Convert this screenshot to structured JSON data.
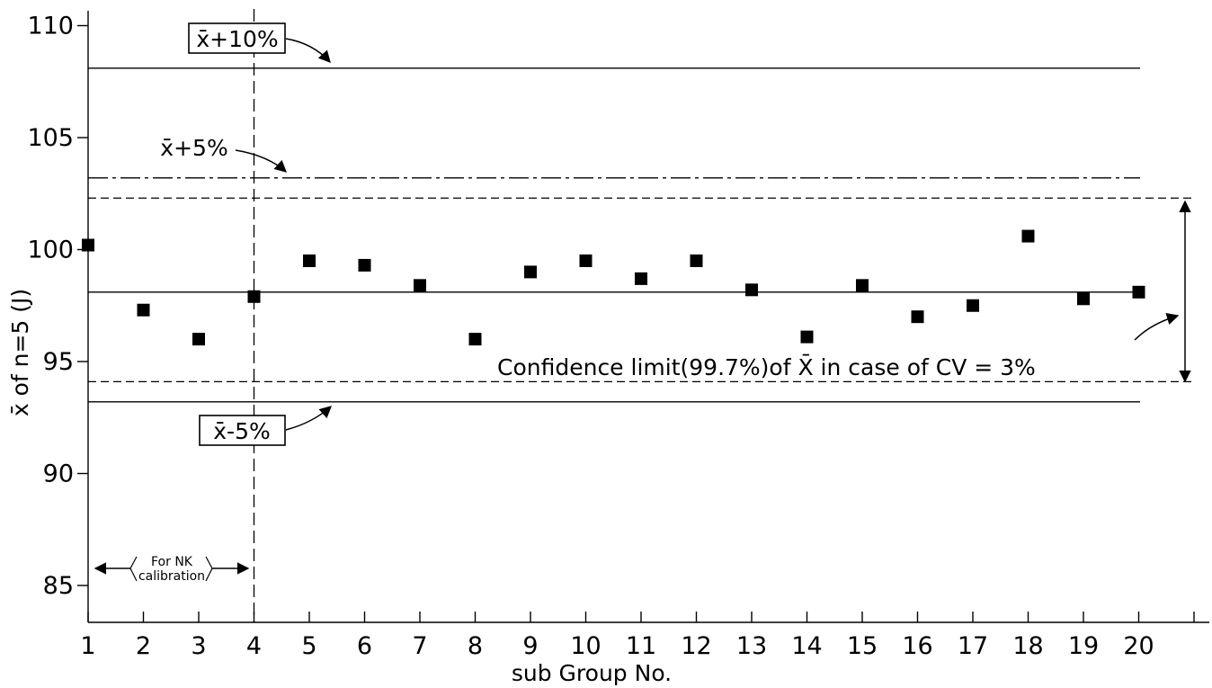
{
  "chart_data": {
    "type": "scatter",
    "title": "",
    "xlabel": "sub Group No.",
    "ylabel": "x̄ of n=5  (J)",
    "xlim": [
      1,
      21
    ],
    "ylim": [
      83.5,
      110.5
    ],
    "x_ticks": [
      1,
      2,
      3,
      4,
      5,
      6,
      7,
      8,
      9,
      10,
      11,
      12,
      13,
      14,
      15,
      16,
      17,
      18,
      19,
      20
    ],
    "y_ticks": [
      85,
      90,
      95,
      100,
      105,
      110
    ],
    "series": [
      {
        "marker": "square",
        "points": [
          {
            "x": 1,
            "y": 100.2
          },
          {
            "x": 2,
            "y": 97.3
          },
          {
            "x": 3,
            "y": 96.0
          },
          {
            "x": 4,
            "y": 97.9
          },
          {
            "x": 5,
            "y": 99.5
          },
          {
            "x": 6,
            "y": 99.3
          },
          {
            "x": 7,
            "y": 98.4
          },
          {
            "x": 8,
            "y": 96.0
          },
          {
            "x": 9,
            "y": 99.0
          },
          {
            "x": 10,
            "y": 99.5
          },
          {
            "x": 11,
            "y": 98.7
          },
          {
            "x": 12,
            "y": 99.5
          },
          {
            "x": 13,
            "y": 98.2
          },
          {
            "x": 14,
            "y": 96.1
          },
          {
            "x": 15,
            "y": 98.4
          },
          {
            "x": 16,
            "y": 97.0
          },
          {
            "x": 17,
            "y": 97.5
          },
          {
            "x": 18,
            "y": 100.6
          },
          {
            "x": 19,
            "y": 97.8
          },
          {
            "x": 20,
            "y": 98.1
          }
        ]
      }
    ],
    "reference_lines": [
      {
        "y": 108.1,
        "style": "solid",
        "x_start": 1,
        "x_end": 20,
        "label": "x̄+10%"
      },
      {
        "y": 103.2,
        "style": "dash-dot",
        "x_start": 1,
        "x_end": 20,
        "label": "x̄+5%"
      },
      {
        "y": 102.3,
        "style": "dashed",
        "x_start": 1,
        "x_end": 21
      },
      {
        "y": 98.1,
        "style": "solid",
        "x_start": 1,
        "x_end": 20
      },
      {
        "y": 94.1,
        "style": "dashed",
        "x_start": 1,
        "x_end": 21
      },
      {
        "y": 93.2,
        "style": "solid",
        "x_start": 1,
        "x_end": 20,
        "label": "x̄-5%"
      }
    ],
    "vertical_line": {
      "x": 4,
      "style": "dashed"
    },
    "annotations": {
      "plus10_label": "x̄+10%",
      "plus5_label": "x̄+5%",
      "minus5_label": "x̄-5%",
      "confidence_label": "Confidence limit(99.7%)of X̄ in case of CV = 3%",
      "calibration_line1": "For NK",
      "calibration_line2": "calibration"
    },
    "grid": false,
    "legend": "none"
  }
}
